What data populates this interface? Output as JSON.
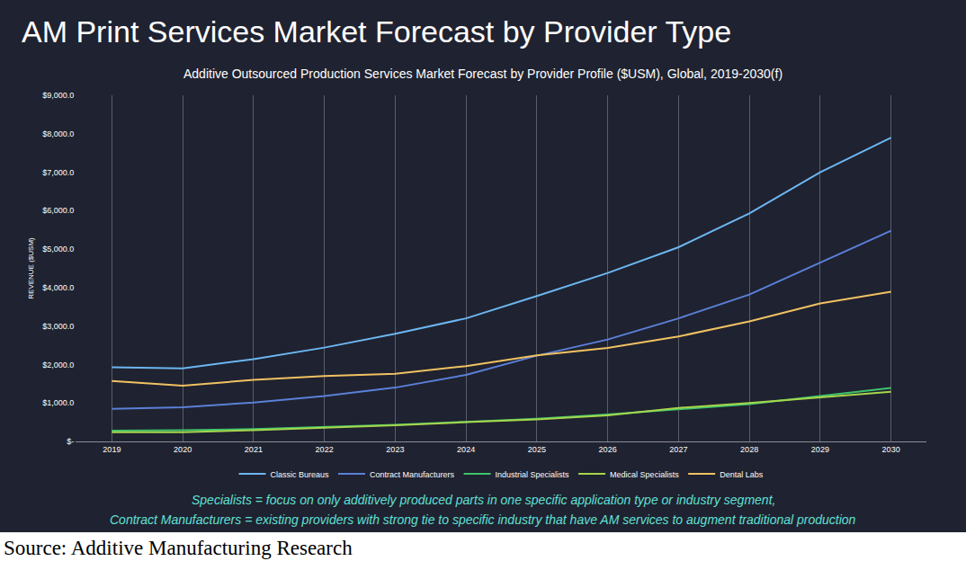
{
  "chart_data": {
    "type": "line",
    "title": "AM Print Services Market Forecast by Provider Type",
    "subtitle": "Additive Outsourced Production Services Market Forecast by Provider Profile ($USM), Global, 2019-2030(f)",
    "y_label": "REVENUE ($USM)",
    "annotations": [
      "Specialists = focus on only additively produced parts in one specific application type or industry segment,",
      "Contract Manufacturers = existing providers with strong tie to specific industry that have AM services to augment traditional production"
    ],
    "source": "Source: Additive Manufacturing Research",
    "x": [
      2019,
      2020,
      2021,
      2022,
      2023,
      2024,
      2025,
      2026,
      2027,
      2028,
      2029,
      2030
    ],
    "xlim": [
      2018.5,
      2030.5
    ],
    "xticks": [
      2019,
      2020,
      2021,
      2022,
      2023,
      2024,
      2025,
      2026,
      2027,
      2028,
      2029,
      2030
    ],
    "ylim": [
      0,
      9000
    ],
    "yticks": [
      {
        "value": 0,
        "label": "$-"
      },
      {
        "value": 1000,
        "label": "$1,000.0"
      },
      {
        "value": 2000,
        "label": "$2,000.0"
      },
      {
        "value": 3000,
        "label": "$3,000.0"
      },
      {
        "value": 4000,
        "label": "$4,000.0"
      },
      {
        "value": 5000,
        "label": "$5,000.0"
      },
      {
        "value": 6000,
        "label": "$6,000.0"
      },
      {
        "value": 7000,
        "label": "$7,000.0"
      },
      {
        "value": 8000,
        "label": "$8,000.0"
      },
      {
        "value": 9000,
        "label": "$9,000.0"
      }
    ],
    "grid": "x",
    "legend": "bottom",
    "series": [
      {
        "name": "Classic Bureaus",
        "color": "#6cb6f2",
        "values": [
          1930,
          1900,
          2140,
          2440,
          2800,
          3200,
          3780,
          4380,
          5050,
          5930,
          7000,
          7900
        ]
      },
      {
        "name": "Contract Manufacturers",
        "color": "#5b80d8",
        "values": [
          850,
          890,
          1010,
          1180,
          1400,
          1730,
          2230,
          2650,
          3200,
          3820,
          4650,
          5480
        ]
      },
      {
        "name": "Industrial Specialists",
        "color": "#3ec46c",
        "values": [
          280,
          290,
          320,
          370,
          430,
          510,
          590,
          700,
          830,
          970,
          1180,
          1390
        ]
      },
      {
        "name": "Medical Specialists",
        "color": "#a6d64c",
        "values": [
          240,
          240,
          290,
          350,
          420,
          500,
          570,
          680,
          870,
          1000,
          1150,
          1290
        ]
      },
      {
        "name": "Dental Labs",
        "color": "#f0c262",
        "values": [
          1570,
          1450,
          1600,
          1700,
          1760,
          1960,
          2240,
          2430,
          2730,
          3120,
          3590,
          3890
        ]
      }
    ]
  }
}
